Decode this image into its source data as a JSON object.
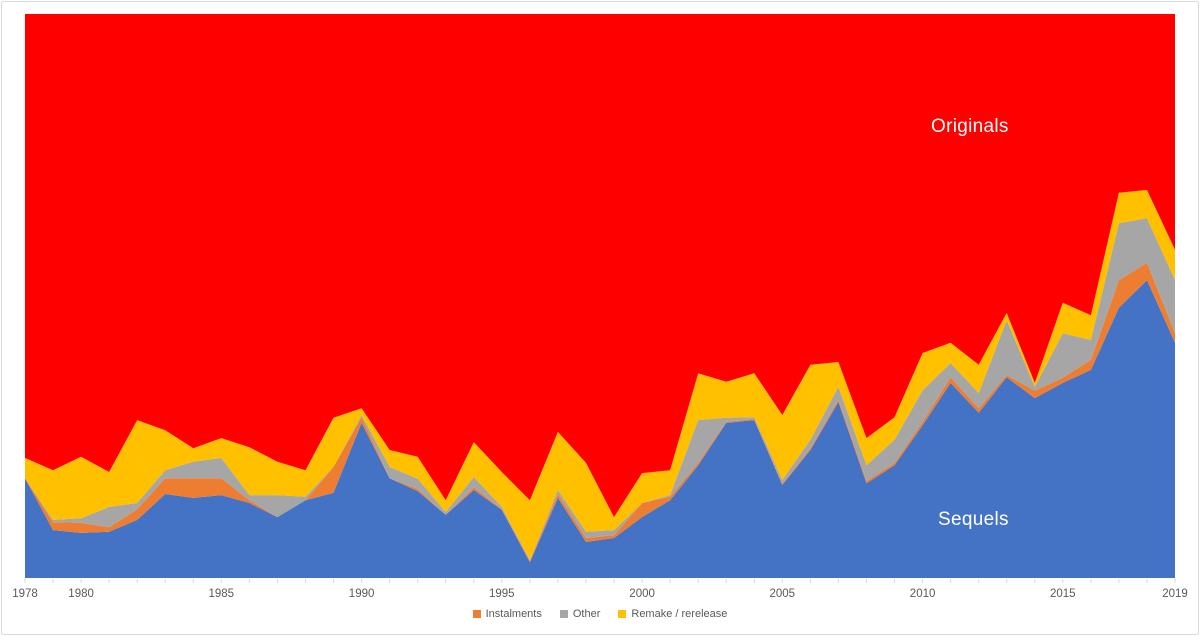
{
  "labels": {
    "originals": "Originals",
    "sequels": "Sequels"
  },
  "legend": {
    "items": [
      {
        "label": "Instalments",
        "color": "#ED7D31"
      },
      {
        "label": "Other",
        "color": "#A6A6A6"
      },
      {
        "label": "Remake / rerelease",
        "color": "#FFC000"
      }
    ]
  },
  "axis": {
    "tick_labels": [
      "1978",
      "1980",
      "1985",
      "1990",
      "1995",
      "2000",
      "2005",
      "2010",
      "2015",
      "2019"
    ],
    "tick_years": [
      1978,
      1980,
      1985,
      1990,
      1995,
      2000,
      2005,
      2010,
      2015,
      2019
    ],
    "label_color": "#595959",
    "tick_color": "#d9d9d9"
  },
  "chart_data": {
    "type": "area",
    "stacked": true,
    "percent": true,
    "title": "",
    "xlabel": "",
    "ylabel": "",
    "ylim": [
      0,
      100
    ],
    "grid": false,
    "legend_position": "bottom",
    "x": [
      1978,
      1979,
      1980,
      1981,
      1982,
      1983,
      1984,
      1985,
      1986,
      1987,
      1988,
      1989,
      1990,
      1991,
      1992,
      1993,
      1994,
      1995,
      1996,
      1997,
      1998,
      1999,
      2000,
      2001,
      2002,
      2003,
      2004,
      2005,
      2006,
      2007,
      2008,
      2009,
      2010,
      2011,
      2012,
      2013,
      2014,
      2015,
      2016,
      2017,
      2018,
      2019
    ],
    "series": [
      {
        "name": "Sequels",
        "color": "#4472C4",
        "values": [
          17.7,
          8.5,
          8.0,
          8.2,
          10.3,
          14.9,
          14.2,
          14.7,
          13.3,
          10.8,
          13.8,
          15.1,
          27.5,
          17.7,
          15.4,
          11.2,
          15.6,
          12.1,
          2.8,
          14.2,
          6.4,
          7.1,
          10.8,
          13.8,
          20.0,
          27.5,
          28.0,
          16.5,
          22.7,
          31.2,
          16.8,
          20.0,
          27.1,
          34.6,
          29.3,
          35.6,
          31.9,
          34.6,
          36.9,
          47.9,
          52.8,
          41.7
        ]
      },
      {
        "name": "Instalments",
        "color": "#ED7D31",
        "values": [
          0,
          1.4,
          1.8,
          0.8,
          1.9,
          2.8,
          3.5,
          3.0,
          0.5,
          0,
          0,
          4.6,
          1.0,
          0,
          0.4,
          0,
          0.5,
          0.1,
          0.2,
          0.7,
          0.7,
          0.5,
          2.5,
          0.6,
          0.4,
          0.2,
          0.2,
          0.2,
          0.3,
          0.4,
          0.4,
          0.4,
          0.6,
          1.0,
          0.8,
          0.4,
          1.3,
          0.9,
          1.8,
          4.9,
          3.1,
          1.7
        ]
      },
      {
        "name": "Other",
        "color": "#A6A6A6",
        "values": [
          0,
          0.4,
          0.8,
          3.6,
          1.1,
          1.4,
          2.9,
          3.6,
          0.9,
          3.9,
          0.6,
          0,
          0.4,
          2.0,
          1.8,
          0.5,
          1.8,
          0.4,
          0.2,
          0.7,
          1.1,
          0.9,
          0,
          0.3,
          7.6,
          0.7,
          0.3,
          0.7,
          1.5,
          2.3,
          2.8,
          4.1,
          5.6,
          2.5,
          2.7,
          9.7,
          0.7,
          7.9,
          3.5,
          10.1,
          7.9,
          9.4
        ]
      },
      {
        "name": "Remake / rerelease",
        "color": "#FFC000",
        "values": [
          3.6,
          8.8,
          10.9,
          6.2,
          14.7,
          7.1,
          2.4,
          3.5,
          8.5,
          5.9,
          4.7,
          8.7,
          1.2,
          3.0,
          3.9,
          2.1,
          6.2,
          6.2,
          10.6,
          10.3,
          12.2,
          2.3,
          5.3,
          4.4,
          8.3,
          6.4,
          7.8,
          11.5,
          13.3,
          4.4,
          4.8,
          4.0,
          6.6,
          3.6,
          5.0,
          1.3,
          0.7,
          5.4,
          4.4,
          5.4,
          5.0,
          5.4
        ]
      },
      {
        "name": "Originals",
        "color": "#FE0000",
        "values": [
          78.7,
          80.9,
          78.5,
          81.2,
          72.0,
          73.8,
          77.0,
          75.2,
          76.8,
          79.4,
          80.9,
          71.6,
          69.9,
          77.3,
          78.5,
          86.2,
          75.9,
          81.2,
          86.2,
          74.1,
          79.6,
          89.2,
          81.4,
          80.9,
          63.7,
          65.2,
          63.7,
          71.1,
          62.2,
          61.7,
          75.2,
          71.5,
          60.1,
          58.3,
          62.2,
          53.0,
          65.4,
          51.2,
          53.4,
          31.7,
          31.2,
          41.8
        ]
      }
    ]
  }
}
